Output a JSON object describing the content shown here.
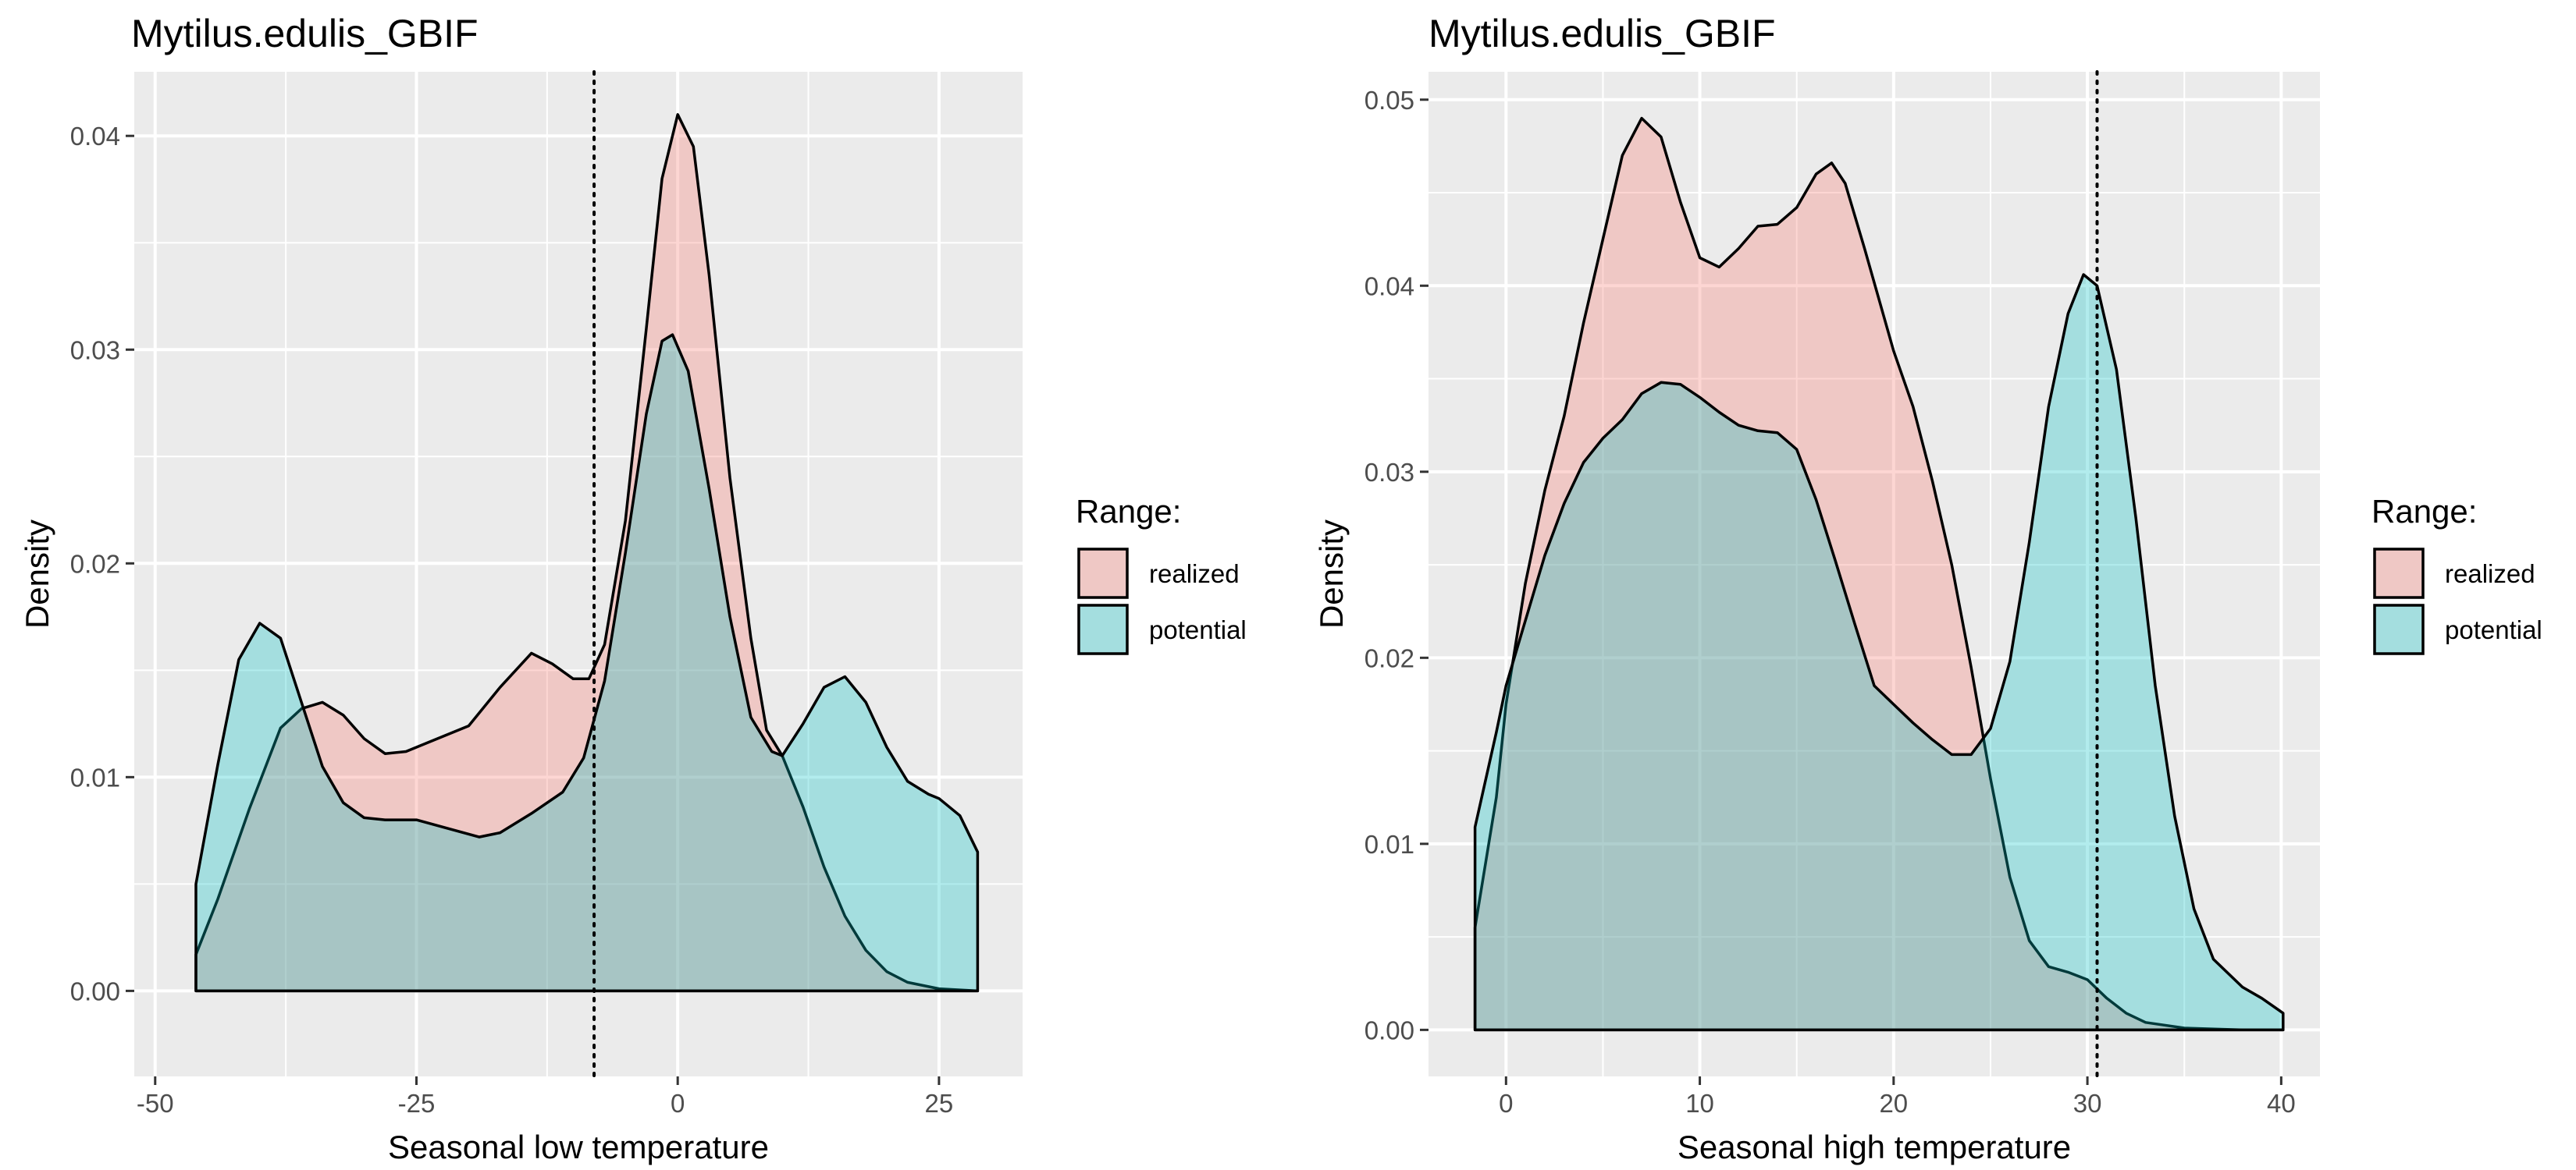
{
  "chart_data": [
    {
      "type": "area",
      "title": "Mytilus.edulis_GBIF",
      "xlabel": "Seasonal low temperature",
      "ylabel": "Density",
      "xlim": [
        -52,
        33
      ],
      "ylim": [
        -0.004,
        0.043
      ],
      "x_ticks": [
        -50,
        -25,
        0,
        25
      ],
      "x_tick_labels": [
        "-50",
        "-25",
        "0",
        "25"
      ],
      "y_ticks": [
        0,
        0.01,
        0.02,
        0.03,
        0.04
      ],
      "y_tick_labels": [
        "0.00",
        "0.01",
        "0.02",
        "0.03",
        "0.04"
      ],
      "grid": true,
      "vline": -8,
      "legend": {
        "title": "Range:",
        "position": "right"
      },
      "series": [
        {
          "name": "realized",
          "color": "#F8766D",
          "points": [
            [
              -46.1,
              0.0017
            ],
            [
              -44,
              0.0043
            ],
            [
              -41,
              0.0085
            ],
            [
              -38,
              0.0123
            ],
            [
              -36,
              0.0132
            ],
            [
              -34,
              0.0135
            ],
            [
              -32,
              0.0129
            ],
            [
              -30,
              0.0118
            ],
            [
              -28,
              0.0111
            ],
            [
              -26,
              0.0112
            ],
            [
              -24,
              0.0116
            ],
            [
              -20,
              0.0124
            ],
            [
              -17,
              0.0142
            ],
            [
              -14,
              0.0158
            ],
            [
              -12,
              0.0153
            ],
            [
              -10,
              0.0146
            ],
            [
              -8.5,
              0.0146
            ],
            [
              -7,
              0.0162
            ],
            [
              -5,
              0.022
            ],
            [
              -3,
              0.031
            ],
            [
              -1.5,
              0.038
            ],
            [
              0,
              0.041
            ],
            [
              1.5,
              0.0395
            ],
            [
              3,
              0.0335
            ],
            [
              5,
              0.024
            ],
            [
              7,
              0.0165
            ],
            [
              8.5,
              0.0122
            ],
            [
              10,
              0.011
            ],
            [
              12,
              0.0086
            ],
            [
              14,
              0.0058
            ],
            [
              16,
              0.0035
            ],
            [
              18,
              0.0019
            ],
            [
              20,
              0.0009
            ],
            [
              22,
              0.0004
            ],
            [
              25,
              0.0001
            ],
            [
              28.7,
              0
            ]
          ]
        },
        {
          "name": "potential",
          "color": "#00BFC4",
          "points": [
            [
              -46.1,
              0.005
            ],
            [
              -44,
              0.0106
            ],
            [
              -42,
              0.0155
            ],
            [
              -40,
              0.0172
            ],
            [
              -38,
              0.0165
            ],
            [
              -36,
              0.0135
            ],
            [
              -34,
              0.0105
            ],
            [
              -32,
              0.0088
            ],
            [
              -30,
              0.0081
            ],
            [
              -28,
              0.008
            ],
            [
              -25,
              0.008
            ],
            [
              -22,
              0.0076
            ],
            [
              -19,
              0.0072
            ],
            [
              -17,
              0.0074
            ],
            [
              -14,
              0.0083
            ],
            [
              -11,
              0.0093
            ],
            [
              -9,
              0.0109
            ],
            [
              -7,
              0.0145
            ],
            [
              -5,
              0.0205
            ],
            [
              -3,
              0.027
            ],
            [
              -1.5,
              0.0304
            ],
            [
              -0.5,
              0.0307
            ],
            [
              1,
              0.029
            ],
            [
              3,
              0.0235
            ],
            [
              5,
              0.0175
            ],
            [
              7,
              0.0128
            ],
            [
              9,
              0.0112
            ],
            [
              10,
              0.011
            ],
            [
              12,
              0.0125
            ],
            [
              14,
              0.0142
            ],
            [
              16,
              0.0147
            ],
            [
              18,
              0.0135
            ],
            [
              20,
              0.0114
            ],
            [
              22,
              0.0098
            ],
            [
              24,
              0.0092
            ],
            [
              25,
              0.009
            ],
            [
              27,
              0.0082
            ],
            [
              28.7,
              0.0065
            ]
          ]
        }
      ]
    },
    {
      "type": "area",
      "title": "Mytilus.edulis_GBIF",
      "xlabel": "Seasonal high temperature",
      "ylabel": "Density",
      "xlim": [
        -4,
        42
      ],
      "ylim": [
        -0.0025,
        0.0515
      ],
      "x_ticks": [
        0,
        10,
        20,
        30,
        40
      ],
      "x_tick_labels": [
        "0",
        "10",
        "20",
        "30",
        "40"
      ],
      "y_ticks": [
        0,
        0.01,
        0.02,
        0.03,
        0.04,
        0.05
      ],
      "y_tick_labels": [
        "0.00",
        "0.01",
        "0.02",
        "0.03",
        "0.04",
        "0.05"
      ],
      "grid": true,
      "vline": 30.5,
      "legend": {
        "title": "Range:",
        "position": "right"
      },
      "series": [
        {
          "name": "realized",
          "color": "#F8766D",
          "points": [
            [
              -1.6,
              0.0055
            ],
            [
              -0.5,
              0.0125
            ],
            [
              0,
              0.0175
            ],
            [
              1,
              0.024
            ],
            [
              2,
              0.029
            ],
            [
              3,
              0.033
            ],
            [
              4,
              0.038
            ],
            [
              5,
              0.0425
            ],
            [
              6,
              0.047
            ],
            [
              7,
              0.049
            ],
            [
              8,
              0.048
            ],
            [
              9,
              0.0445
            ],
            [
              10,
              0.0415
            ],
            [
              11,
              0.041
            ],
            [
              12,
              0.042
            ],
            [
              13,
              0.0432
            ],
            [
              14,
              0.0433
            ],
            [
              15,
              0.0442
            ],
            [
              16,
              0.046
            ],
            [
              16.8,
              0.0466
            ],
            [
              17.5,
              0.0455
            ],
            [
              18.5,
              0.042
            ],
            [
              20,
              0.0365
            ],
            [
              21,
              0.0335
            ],
            [
              22,
              0.0295
            ],
            [
              23,
              0.025
            ],
            [
              24,
              0.0195
            ],
            [
              25,
              0.0135
            ],
            [
              26,
              0.0082
            ],
            [
              27,
              0.0048
            ],
            [
              28,
              0.0034
            ],
            [
              29,
              0.0031
            ],
            [
              30,
              0.0027
            ],
            [
              31,
              0.0017
            ],
            [
              32,
              0.0009
            ],
            [
              33,
              0.0004
            ],
            [
              35,
              0.0001
            ],
            [
              38,
              0
            ],
            [
              40.1,
              0
            ]
          ]
        },
        {
          "name": "potential",
          "color": "#00BFC4",
          "points": [
            [
              -1.6,
              0.0109
            ],
            [
              -0.5,
              0.016
            ],
            [
              0,
              0.0185
            ],
            [
              1,
              0.022
            ],
            [
              2,
              0.0255
            ],
            [
              3,
              0.0283
            ],
            [
              4,
              0.0305
            ],
            [
              5,
              0.0318
            ],
            [
              6,
              0.0328
            ],
            [
              7,
              0.0342
            ],
            [
              8,
              0.0348
            ],
            [
              9,
              0.0347
            ],
            [
              10,
              0.034
            ],
            [
              11,
              0.0332
            ],
            [
              12,
              0.0325
            ],
            [
              13,
              0.0322
            ],
            [
              14,
              0.0321
            ],
            [
              15,
              0.0312
            ],
            [
              16,
              0.0285
            ],
            [
              17,
              0.0252
            ],
            [
              18,
              0.0218
            ],
            [
              19,
              0.0185
            ],
            [
              20,
              0.0175
            ],
            [
              21,
              0.0165
            ],
            [
              22,
              0.0156
            ],
            [
              23,
              0.0148
            ],
            [
              24,
              0.0148
            ],
            [
              25,
              0.0162
            ],
            [
              26,
              0.0198
            ],
            [
              27,
              0.0262
            ],
            [
              28,
              0.0335
            ],
            [
              29,
              0.0385
            ],
            [
              29.8,
              0.0406
            ],
            [
              30.5,
              0.04
            ],
            [
              31.5,
              0.0355
            ],
            [
              32.5,
              0.0275
            ],
            [
              33.5,
              0.0185
            ],
            [
              34.5,
              0.0115
            ],
            [
              35.5,
              0.0065
            ],
            [
              36.5,
              0.0038
            ],
            [
              38,
              0.0023
            ],
            [
              39,
              0.0017
            ],
            [
              40.1,
              0.0009
            ]
          ]
        }
      ]
    }
  ]
}
